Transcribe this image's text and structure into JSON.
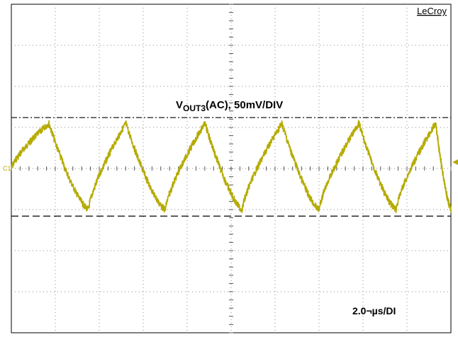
{
  "chart_data": {
    "type": "line",
    "brand": "LeCroy",
    "channel_label": "C1",
    "trace_label": {
      "prefix": "V",
      "subscript": "OUT3",
      "suffix": "(AC), 50mV/DIV"
    },
    "time_label": "2.0¬µs/DI",
    "grid": true,
    "divisions": {
      "x": 10,
      "y": 8
    },
    "xlim": [
      0,
      20
    ],
    "ylim": [
      -200,
      200
    ],
    "x_unit": "µs",
    "y_unit": "mV",
    "series": [
      {
        "color": "#b5ab00",
        "x": [
          0,
          1.7,
          3.5,
          5.2,
          7.0,
          8.8,
          10.5,
          12.3,
          14.0,
          15.8,
          17.5,
          19.3,
          20
        ],
        "y": [
          0,
          55,
          -50,
          55,
          -50,
          55,
          -50,
          55,
          -50,
          55,
          -50,
          55,
          -50
        ]
      }
    ],
    "reference_lines": [
      {
        "style": "dash-dot",
        "y": 62
      },
      {
        "style": "dashed",
        "y": -58
      }
    ],
    "trigger_marker_color": "#b5ab00"
  }
}
